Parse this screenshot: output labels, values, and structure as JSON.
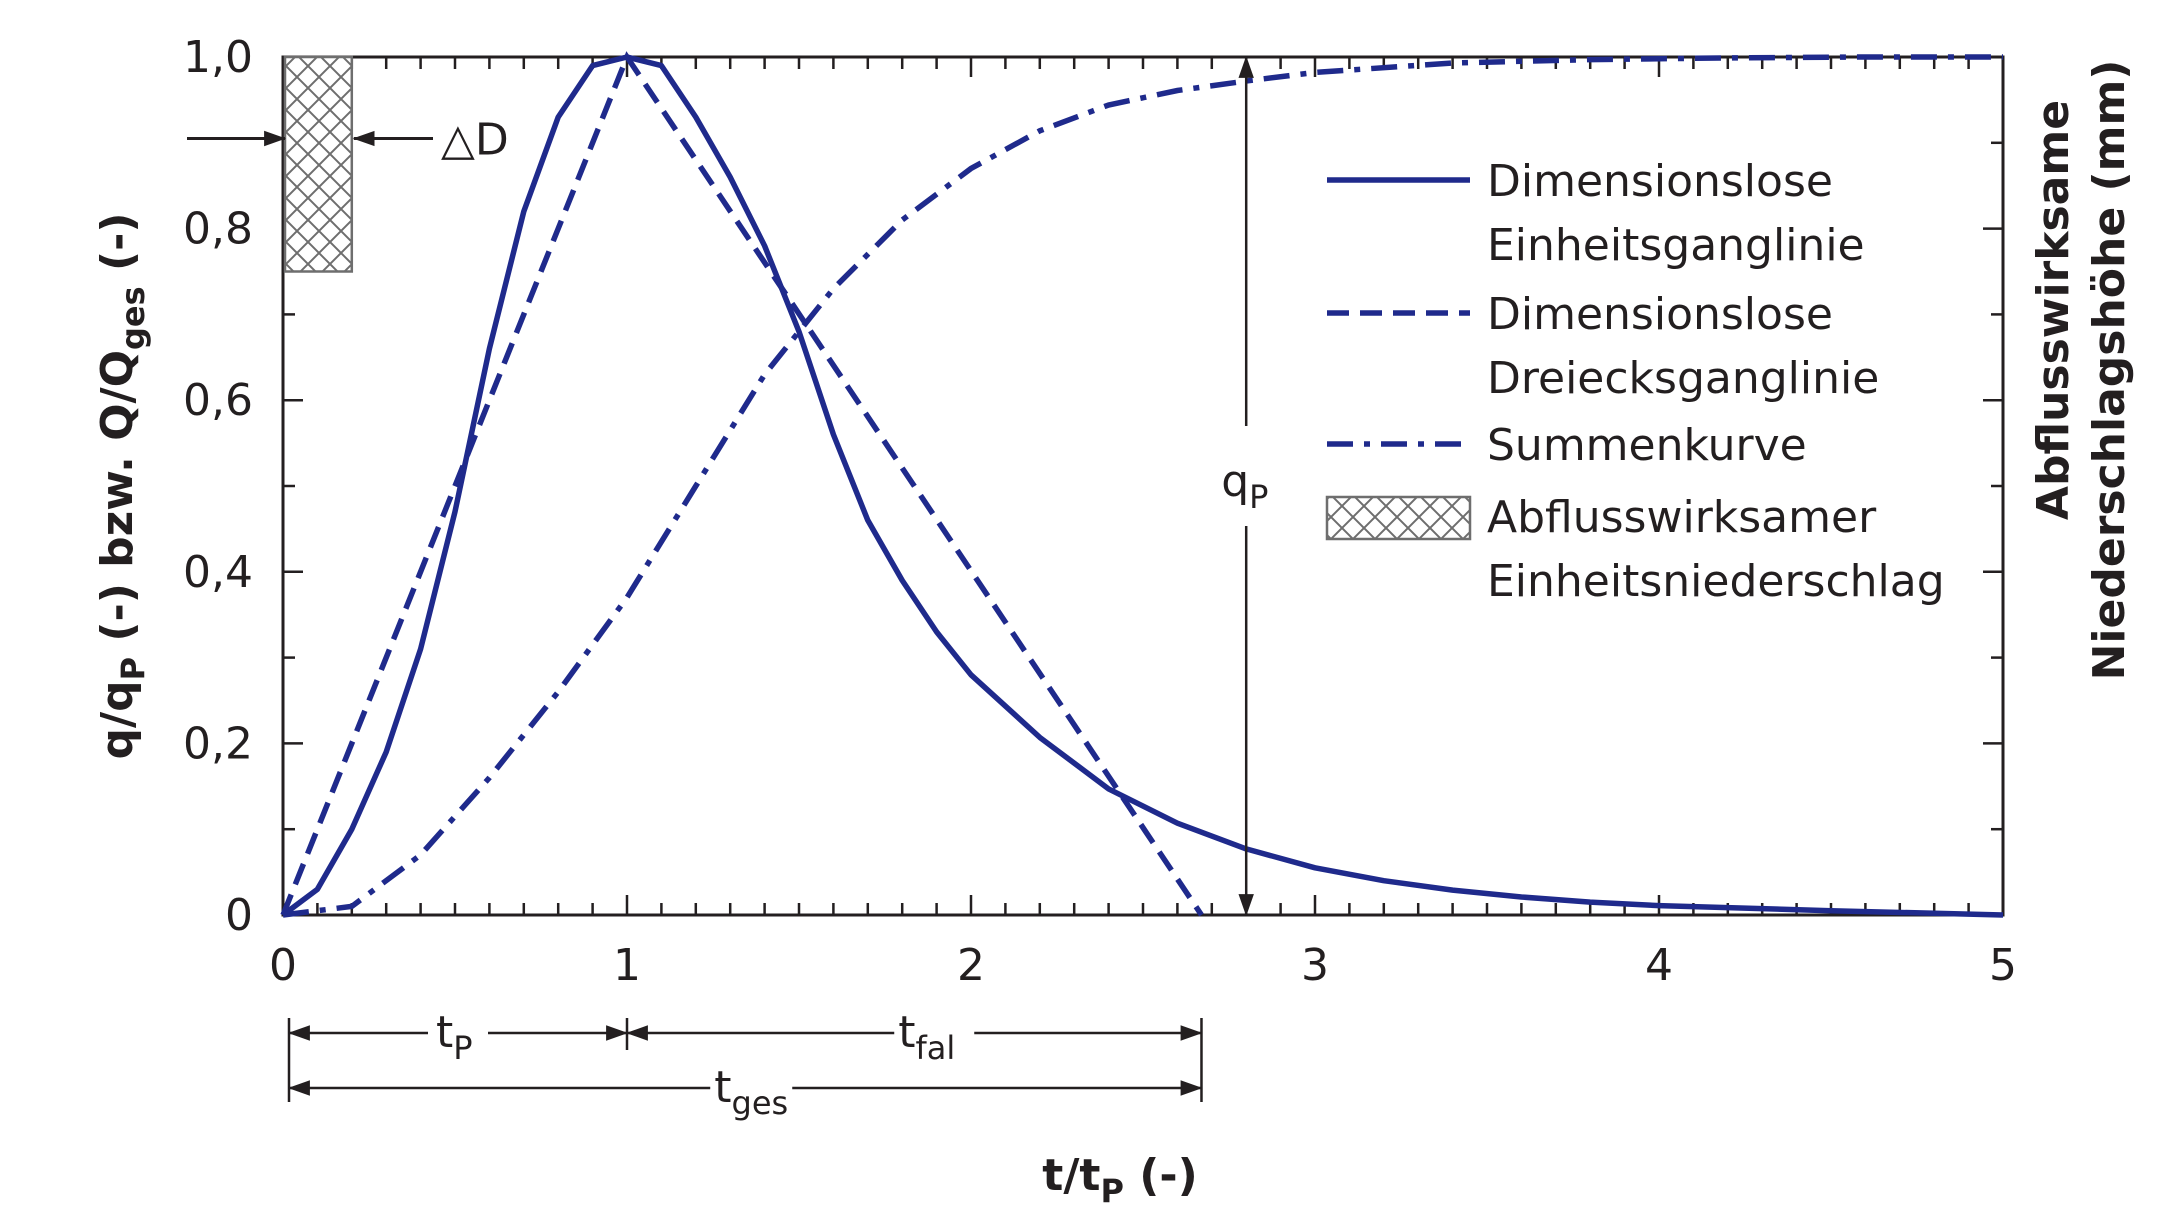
{
  "chart_data": {
    "type": "line",
    "xlabel": {
      "main": "t/t",
      "sub": "P",
      "unit": " (-)"
    },
    "ylabel": {
      "p1": "q/q",
      "s1": "P",
      "p2": " (-) bzw. Q/Q",
      "s2": "ges",
      "p3": " (-)"
    },
    "y2label": {
      "line1": "Abflusswirksame",
      "line2": "Niederschlagshöhe (mm)"
    },
    "xlim": [
      0,
      5
    ],
    "ylim": [
      0,
      1
    ],
    "xticks": [
      0,
      1,
      2,
      3,
      4,
      5
    ],
    "xtick_labels": [
      "0",
      "1",
      "2",
      "3",
      "4",
      "5"
    ],
    "yticks": [
      0,
      0.2,
      0.4,
      0.6,
      0.8,
      1.0
    ],
    "ytick_labels": [
      "0",
      "0,2",
      "0,4",
      "0,6",
      "0,8",
      "1,0"
    ],
    "grid": false,
    "legend_position": "top-right",
    "series": [
      {
        "name": "Dimensionslose Einheitsganglinie",
        "legend_lines": [
          "Dimensionslose",
          "Einheitsganglinie"
        ],
        "style": "solid",
        "color": "#1f2a8c",
        "x": [
          0,
          0.1,
          0.2,
          0.3,
          0.4,
          0.5,
          0.6,
          0.7,
          0.8,
          0.9,
          1.0,
          1.1,
          1.2,
          1.3,
          1.4,
          1.5,
          1.6,
          1.7,
          1.8,
          1.9,
          2.0,
          2.2,
          2.4,
          2.6,
          2.8,
          3.0,
          3.2,
          3.4,
          3.6,
          3.8,
          4.0,
          4.5,
          5.0
        ],
        "y": [
          0,
          0.03,
          0.1,
          0.19,
          0.31,
          0.47,
          0.66,
          0.82,
          0.93,
          0.99,
          1.0,
          0.99,
          0.93,
          0.86,
          0.78,
          0.68,
          0.56,
          0.46,
          0.39,
          0.33,
          0.28,
          0.207,
          0.147,
          0.107,
          0.077,
          0.055,
          0.04,
          0.029,
          0.021,
          0.015,
          0.011,
          0.005,
          0.0
        ]
      },
      {
        "name": "Dimensionslose Dreiecksganglinie",
        "legend_lines": [
          "Dimensionslose",
          "Dreiecksganglinie"
        ],
        "style": "dashed",
        "color": "#1f2a8c",
        "x": [
          0,
          1.0,
          2.67
        ],
        "y": [
          0,
          1.0,
          0
        ]
      },
      {
        "name": "Summenkurve",
        "legend_lines": [
          "Summenkurve"
        ],
        "style": "dashdot",
        "color": "#1f2a8c",
        "x": [
          0,
          0.2,
          0.4,
          0.6,
          0.8,
          1.0,
          1.2,
          1.4,
          1.6,
          1.8,
          2.0,
          2.2,
          2.4,
          2.6,
          2.8,
          3.0,
          3.4,
          3.8,
          4.2,
          4.6,
          5.0
        ],
        "y": [
          0,
          0.01,
          0.07,
          0.16,
          0.26,
          0.37,
          0.5,
          0.63,
          0.73,
          0.81,
          0.87,
          0.914,
          0.944,
          0.961,
          0.972,
          0.982,
          0.993,
          0.997,
          0.999,
          1.0,
          1.0
        ]
      }
    ],
    "rain_block": {
      "name": "Abflusswirksamer Einheitsniederschlag",
      "legend_lines": [
        "Abflusswirksamer",
        "Einheitsniederschlag"
      ],
      "x_range": [
        0,
        0.2
      ],
      "y_range": [
        0.75,
        1.0
      ],
      "color": "#808080"
    },
    "annotations": {
      "delta_d": {
        "text": "△D",
        "y": 0.905
      },
      "qp": {
        "main": "q",
        "sub": "P",
        "x": 2.8,
        "y_top": 1.0,
        "y_bottom": 0.0
      },
      "tp": {
        "main": "t",
        "sub": "P",
        "x0": 0,
        "x1": 1.0
      },
      "tfal": {
        "main": "t",
        "sub": "fal",
        "x0": 1.0,
        "x1": 2.67
      },
      "tges": {
        "main": "t",
        "sub": "ges",
        "x0": 0,
        "x1": 2.67
      }
    }
  }
}
